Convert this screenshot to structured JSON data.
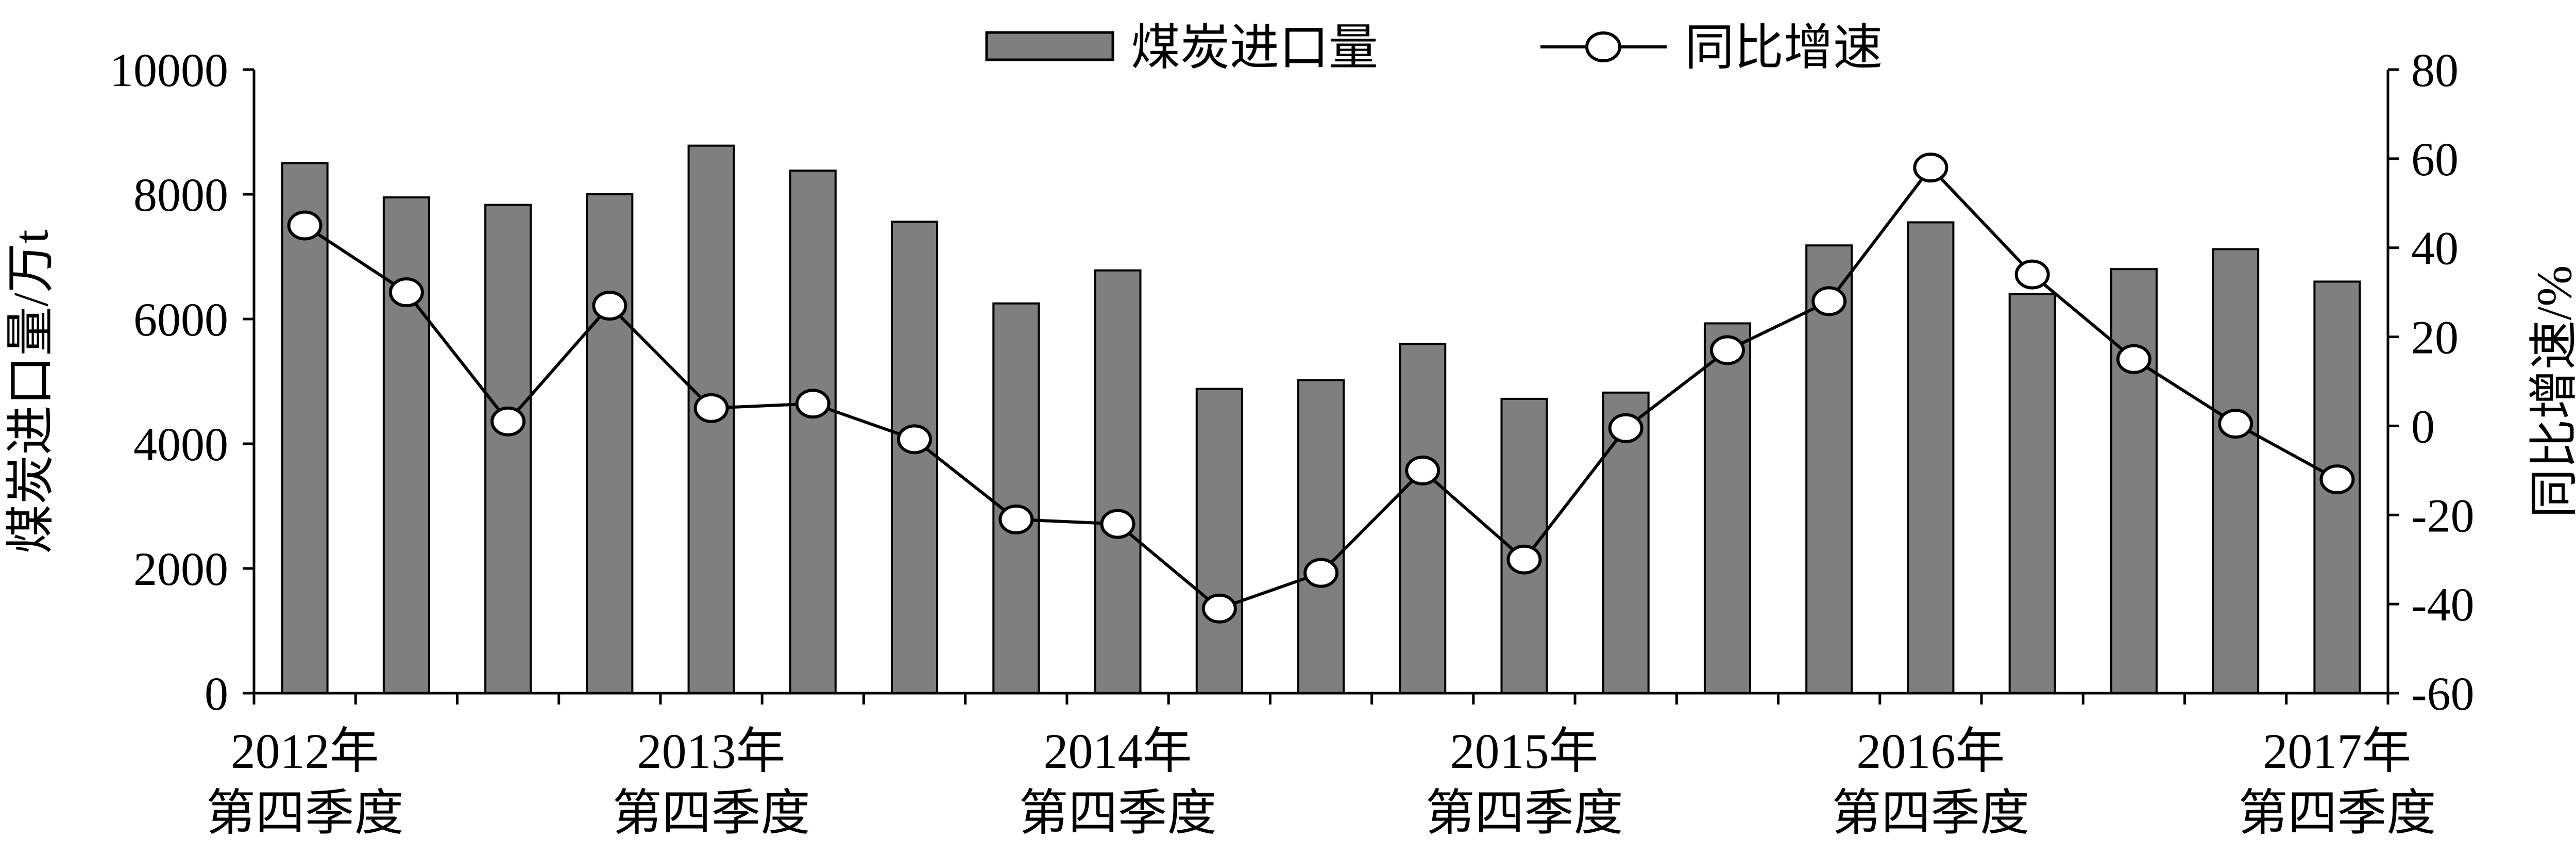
{
  "chart_data": {
    "type": "bar+line",
    "legend_position": "top-center",
    "grid": false,
    "y_left": {
      "label": "煤炭进口量/万t",
      "ylim": [
        0,
        10000
      ],
      "ticks": [
        "0",
        "2000",
        "4000",
        "6000",
        "8000",
        "10000"
      ]
    },
    "y_right": {
      "label": "同比增速/%",
      "ylim": [
        -60,
        80
      ],
      "ticks": [
        "-60",
        "-40",
        "-20",
        "0",
        "20",
        "40",
        "60",
        "80"
      ]
    },
    "x_labels": [
      {
        "index": 0,
        "line1": "2012年",
        "line2": "第四季度"
      },
      {
        "index": 4,
        "line1": "2013年",
        "line2": "第四季度"
      },
      {
        "index": 8,
        "line1": "2014年",
        "line2": "第四季度"
      },
      {
        "index": 12,
        "line1": "2015年",
        "line2": "第四季度"
      },
      {
        "index": 16,
        "line1": "2016年",
        "line2": "第四季度"
      },
      {
        "index": 20,
        "line1": "2017年",
        "line2": "第四季度"
      }
    ],
    "series": [
      {
        "name": "煤炭进口量",
        "type": "bar",
        "axis": "left",
        "color": "#7f7f7f",
        "values": [
          8500,
          7950,
          7830,
          8000,
          8780,
          8380,
          7560,
          6250,
          6780,
          4880,
          5020,
          5600,
          4720,
          4820,
          5930,
          7180,
          7550,
          6400,
          6800,
          7120,
          6600
        ]
      },
      {
        "name": "同比增速",
        "type": "line",
        "axis": "right",
        "color": "#000000",
        "values": [
          45,
          30,
          1,
          27,
          4,
          5,
          -3,
          -21,
          -22,
          -41,
          -33,
          -10,
          -30,
          -0.5,
          17,
          28,
          58,
          34,
          15,
          0.5,
          -12
        ]
      }
    ]
  }
}
